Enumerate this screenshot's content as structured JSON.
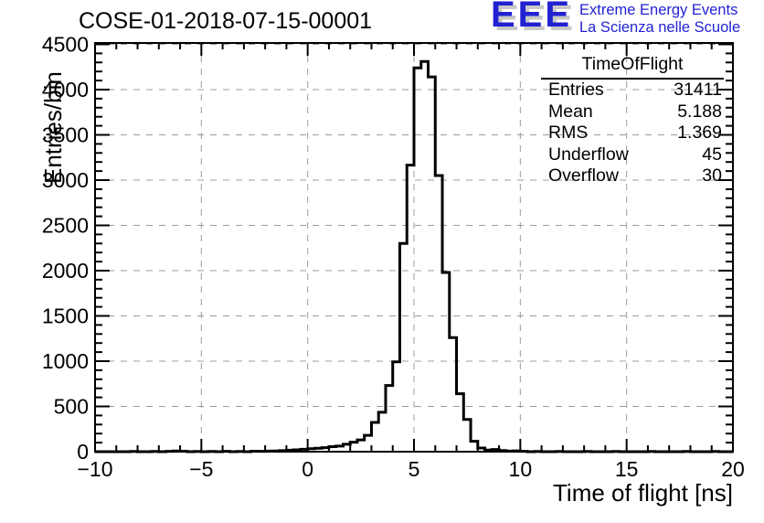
{
  "header": {
    "title": "COSE-01-2018-07-15-00001",
    "logo": {
      "acronym": "EEE",
      "line1": "Extreme Energy Events",
      "line2": "La Scienza nelle Scuole",
      "color": "#2222d2",
      "shadow_color": "#c8c8c8"
    }
  },
  "stats_box": {
    "title": "TimeOfFlight",
    "rows": [
      {
        "label": "Entries",
        "value": "31411"
      },
      {
        "label": "Mean",
        "value": "5.188"
      },
      {
        "label": "RMS",
        "value": "1.369"
      },
      {
        "label": "Underflow",
        "value": "45"
      },
      {
        "label": "Overflow",
        "value": "30"
      }
    ]
  },
  "chart_data": {
    "type": "line",
    "style": "step-histogram",
    "title": "COSE-01-2018-07-15-00001",
    "xlabel": "Time of flight [ns]",
    "ylabel": "Entries/bin",
    "xlim": [
      -10,
      20
    ],
    "ylim": [
      0,
      4515
    ],
    "x_major_ticks": [
      -10,
      -5,
      0,
      5,
      10,
      15,
      20
    ],
    "x_tick_labels": [
      "−10",
      "−5",
      "0",
      "5",
      "10",
      "15",
      "20"
    ],
    "x_minor_step": 1,
    "y_major_ticks": [
      0,
      500,
      1000,
      1500,
      2000,
      2500,
      3000,
      3500,
      4000,
      4500
    ],
    "y_minor_step": 100,
    "grid": {
      "major_dashed": true,
      "color": "#9c9c9c",
      "on": true
    },
    "line_color": "#000000",
    "bin_width_ns": 0.3333,
    "bins_nonzero": [
      [
        -8.33,
        3
      ],
      [
        -7.33,
        2
      ],
      [
        -6.67,
        4
      ],
      [
        -6.33,
        8
      ],
      [
        -6,
        5
      ],
      [
        -5.33,
        3
      ],
      [
        -4.67,
        3
      ],
      [
        -4,
        4
      ],
      [
        -3.33,
        3
      ],
      [
        -2.67,
        5
      ],
      [
        -2.33,
        4
      ],
      [
        -2,
        6
      ],
      [
        -1.67,
        8
      ],
      [
        -1.33,
        11
      ],
      [
        -1,
        16
      ],
      [
        -0.67,
        20
      ],
      [
        -0.33,
        26
      ],
      [
        0,
        33
      ],
      [
        0.33,
        38
      ],
      [
        0.67,
        44
      ],
      [
        1,
        55
      ],
      [
        1.33,
        62
      ],
      [
        1.67,
        82
      ],
      [
        2,
        105
      ],
      [
        2.33,
        130
      ],
      [
        2.67,
        180
      ],
      [
        3,
        323
      ],
      [
        3.33,
        436
      ],
      [
        3.67,
        731
      ],
      [
        4,
        992
      ],
      [
        4.33,
        2300
      ],
      [
        4.67,
        3165
      ],
      [
        5,
        4240
      ],
      [
        5.33,
        4310
      ],
      [
        5.67,
        4140
      ],
      [
        6,
        3050
      ],
      [
        6.33,
        1980
      ],
      [
        6.67,
        1260
      ],
      [
        7,
        640
      ],
      [
        7.33,
        356
      ],
      [
        7.67,
        115
      ],
      [
        8,
        40
      ],
      [
        8.33,
        18
      ],
      [
        8.67,
        24
      ],
      [
        9,
        12
      ],
      [
        9.33,
        6
      ],
      [
        9.67,
        9
      ],
      [
        10,
        4
      ],
      [
        10.67,
        3
      ],
      [
        11.67,
        2
      ],
      [
        13,
        2
      ],
      [
        14.33,
        2
      ],
      [
        16,
        2
      ],
      [
        17.67,
        2
      ],
      [
        19,
        2
      ]
    ]
  }
}
